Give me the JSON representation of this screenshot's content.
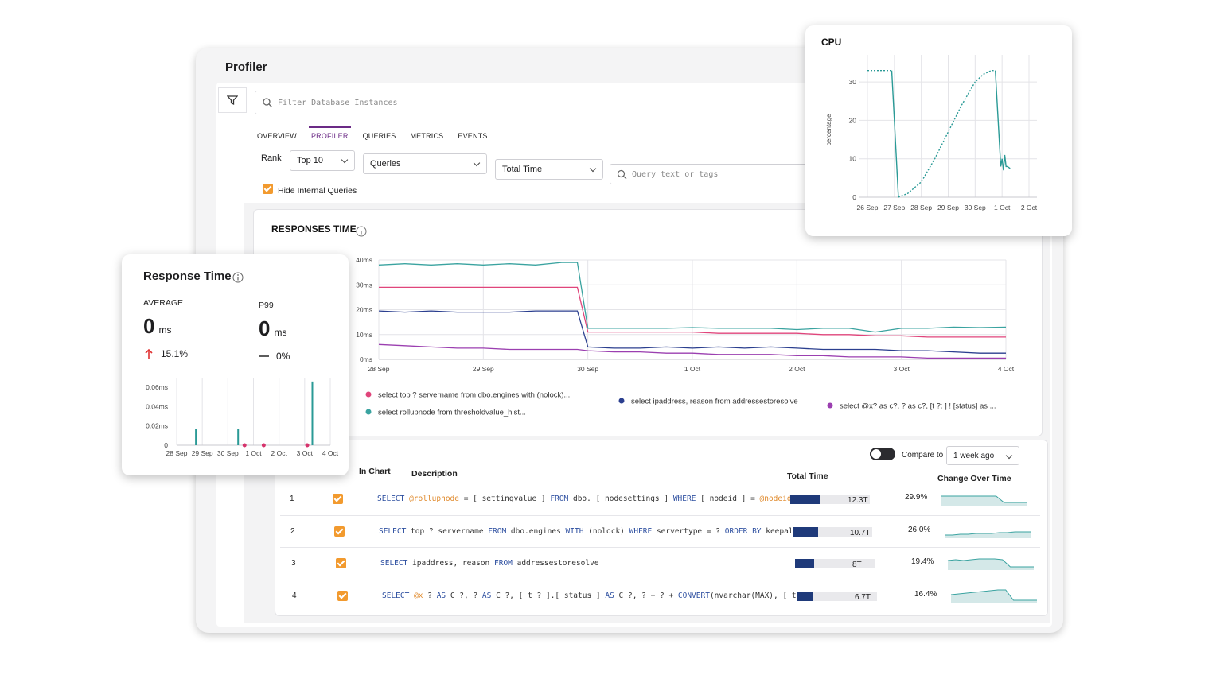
{
  "header": {
    "title": "Profiler",
    "search_placeholder": "Filter Database Instances"
  },
  "tabs": {
    "items": [
      "OVERVIEW",
      "PROFILER",
      "QUERIES",
      "METRICS",
      "EVENTS"
    ],
    "active": 1
  },
  "filters": {
    "rank_label": "Rank",
    "rank": "Top 10",
    "group": "Queries",
    "sort": "Total Time",
    "query_placeholder": "Query text or tags",
    "hide_internal": {
      "label": "Hide Internal Queries",
      "checked": true
    }
  },
  "response_time_card": {
    "title": "Response Time",
    "average": {
      "label": "AVERAGE",
      "value": 0,
      "unit": "ms",
      "change": "15.1%",
      "direction": "up"
    },
    "p99": {
      "label": "P99",
      "value": 0,
      "unit": "ms",
      "change": "0%",
      "direction": "flat"
    }
  },
  "chart_data": [
    {
      "type": "line",
      "title": "RESPONSES TIME",
      "grid": true,
      "x": [
        0,
        0.25,
        0.5,
        0.75,
        1,
        1.25,
        1.5,
        1.75,
        1.9,
        2,
        2.25,
        2.5,
        2.75,
        3,
        3.25,
        3.5,
        3.75,
        4,
        4.25,
        4.5,
        4.75,
        5,
        5.25,
        5.5,
        5.75,
        6
      ],
      "xlim": [
        0,
        6
      ],
      "xticks": [
        {
          "value": 0,
          "label": "28 Sep"
        },
        {
          "value": 1,
          "label": "29 Sep"
        },
        {
          "value": 2,
          "label": "30 Sep"
        },
        {
          "value": 3,
          "label": "1 Oct"
        },
        {
          "value": 4,
          "label": "2 Oct"
        },
        {
          "value": 5,
          "label": "3 Oct"
        },
        {
          "value": 6,
          "label": "4 Oct"
        }
      ],
      "ylim": [
        0,
        40
      ],
      "yticks": [
        {
          "value": 0,
          "label": "0ms"
        },
        {
          "value": 10,
          "label": "10ms"
        },
        {
          "value": 20,
          "label": "20ms"
        },
        {
          "value": 30,
          "label": "30ms"
        },
        {
          "value": 40,
          "label": "40ms"
        }
      ],
      "series": [
        {
          "name": "select top ? servername from dbo.engines with (nolock)...",
          "color": "#e0457b",
          "values": [
            29,
            29,
            29,
            29,
            29,
            29,
            29,
            29,
            29,
            11,
            11,
            11,
            11,
            11,
            10.5,
            10.5,
            10.5,
            10.5,
            10,
            10,
            9.5,
            9.5,
            9,
            9,
            9,
            9
          ]
        },
        {
          "name": "select ipaddress, reason from addressestoresolve",
          "color": "#2b3f8f",
          "values": [
            19.5,
            19,
            19.5,
            19,
            19,
            19,
            19.5,
            19.5,
            19.5,
            5,
            4.5,
            4.5,
            5,
            4.5,
            5,
            4.5,
            5,
            4.5,
            4,
            4,
            4,
            3.5,
            3.5,
            3,
            2.5,
            2.5
          ]
        },
        {
          "name": "select @x? as c?, ? as c?, [t ?: ] ! [status] as ...",
          "color": "#9b3fb0",
          "values": [
            6,
            5.5,
            5,
            4.5,
            4.5,
            4,
            4,
            4,
            4,
            3.5,
            3,
            3,
            2.5,
            2.5,
            2,
            2,
            2,
            1.5,
            1.5,
            1,
            1,
            1,
            0.5,
            0.5,
            0.5,
            0.5
          ]
        },
        {
          "name": "select rollupnode from thresholdvalue_hist...",
          "color": "#3aa3a0",
          "values": [
            38,
            38.5,
            38,
            38.5,
            38,
            38.5,
            38,
            39,
            39,
            12.5,
            12.5,
            12.5,
            12.5,
            12.8,
            12.5,
            12.5,
            12.5,
            12,
            12.5,
            12.5,
            11,
            12.5,
            12.5,
            13,
            12.8,
            13
          ]
        }
      ]
    },
    {
      "type": "line",
      "title": "CPU",
      "y_label": "percentage",
      "grid": true,
      "xlim": [
        0,
        6
      ],
      "xticks": [
        {
          "value": 0,
          "label": "26 Sep"
        },
        {
          "value": 1,
          "label": "27 Sep"
        },
        {
          "value": 2,
          "label": "28 Sep"
        },
        {
          "value": 3,
          "label": "29 Sep"
        },
        {
          "value": 4,
          "label": "30 Sep"
        },
        {
          "value": 5,
          "label": "1 Oct"
        },
        {
          "value": 6,
          "label": "2 Oct"
        }
      ],
      "ylim": [
        0,
        35
      ],
      "yticks": [
        0,
        10,
        20,
        30
      ],
      "series": [
        {
          "color": "#2a9a96",
          "dashed": true,
          "x": [
            0,
            0.9
          ],
          "values": [
            33,
            33
          ]
        },
        {
          "color": "#2a9a96",
          "x": [
            0.9,
            1.15
          ],
          "values": [
            33,
            0
          ]
        },
        {
          "color": "#2a9a96",
          "dashed": true,
          "x": [
            1.15,
            1.5,
            2,
            2.5,
            3,
            3.5,
            4,
            4.3,
            4.6,
            4.75
          ],
          "values": [
            0,
            1,
            4,
            10,
            17,
            24,
            30,
            32,
            33,
            33
          ]
        },
        {
          "color": "#2a9a96",
          "x": [
            4.75,
            4.95,
            5.0,
            5.05,
            5.1,
            5.15,
            5.2,
            5.3
          ],
          "values": [
            33,
            8,
            10,
            7,
            11,
            8,
            8,
            7.5
          ]
        }
      ]
    },
    {
      "type": "bar",
      "grid": true,
      "color": "#2a9a96",
      "x": [
        0.75,
        2.4,
        5.3
      ],
      "values": [
        0.017,
        0.017,
        0.066
      ],
      "markers": {
        "color": "#d6336c",
        "x": [
          2.65,
          3.4,
          5.1
        ],
        "values": [
          0,
          0,
          0
        ]
      },
      "xlim": [
        0,
        6
      ],
      "xticks": [
        {
          "value": 0,
          "label": "28 Sep"
        },
        {
          "value": 1,
          "label": "29 Sep"
        },
        {
          "value": 2,
          "label": "30 Sep"
        },
        {
          "value": 3,
          "label": "1 Oct"
        },
        {
          "value": 4,
          "label": "2 Oct"
        },
        {
          "value": 5,
          "label": "3 Oct"
        },
        {
          "value": 6,
          "label": "4 Oct"
        }
      ],
      "ylim": [
        0,
        0.07
      ],
      "yticks": [
        0,
        {
          "value": 0.02,
          "label": "0.02ms"
        },
        {
          "value": 0.04,
          "label": "0.04ms"
        },
        {
          "value": 0.06,
          "label": "0.06ms"
        }
      ]
    }
  ],
  "table": {
    "compare_label": "Compare to",
    "compare_period": "1 week ago",
    "compare_enabled": true,
    "columns": [
      "In Chart",
      "Description",
      "Total Time",
      "Change Over Time"
    ],
    "rows": [
      {
        "rank": 1,
        "in_chart": true,
        "description": [
          [
            "SELECT",
            "kw"
          ],
          [
            " ",
            "txt"
          ],
          [
            "@rollupnode",
            "var"
          ],
          [
            " = [ settingvalue ] ",
            "txt"
          ],
          [
            "FROM",
            "kw"
          ],
          [
            " dbo. [ nodesettings ] ",
            "txt"
          ],
          [
            "WHERE",
            "kw"
          ],
          [
            " [ nodeid ] = ",
            "txt"
          ],
          [
            "@nodeid A…",
            "var"
          ]
        ],
        "total_time": 12.3,
        "total_time_label": "12.3T",
        "change": "29.9%",
        "trend": [
          6,
          6,
          6,
          6,
          6,
          6,
          6,
          6,
          2,
          2,
          2,
          2
        ]
      },
      {
        "rank": 2,
        "in_chart": true,
        "description": [
          [
            "SELECT",
            "kw"
          ],
          [
            " top ? servername ",
            "txt"
          ],
          [
            "FROM",
            "kw"
          ],
          [
            " dbo.engines ",
            "txt"
          ],
          [
            "WITH",
            "kw"
          ],
          [
            " (nolock) ",
            "txt"
          ],
          [
            "WHERE",
            "kw"
          ],
          [
            " servertype = ? ",
            "txt"
          ],
          [
            "ORDER BY",
            "kw"
          ],
          [
            " keepaliv…",
            "txt"
          ]
        ],
        "total_time": 10.7,
        "total_time_label": "10.7T",
        "change": "26.0%",
        "trend": [
          2,
          2,
          2.5,
          2.5,
          3,
          3,
          3,
          3.5,
          3.5,
          4,
          4,
          4
        ]
      },
      {
        "rank": 3,
        "in_chart": true,
        "description": [
          [
            "SELECT",
            "kw"
          ],
          [
            " ipaddress, reason ",
            "txt"
          ],
          [
            "FROM",
            "kw"
          ],
          [
            " addressestoresolve",
            "txt"
          ]
        ],
        "total_time": 8,
        "total_time_label": "8T",
        "change": "19.4%",
        "trend": [
          6,
          6.5,
          6,
          6.5,
          7,
          7,
          7,
          6.5,
          2,
          2,
          2,
          2
        ]
      },
      {
        "rank": 4,
        "in_chart": true,
        "description": [
          [
            "SELECT",
            "kw"
          ],
          [
            " ",
            "txt"
          ],
          [
            "@x",
            "var"
          ],
          [
            " ? ",
            "txt"
          ],
          [
            "AS",
            "kw"
          ],
          [
            " C ?, ? ",
            "txt"
          ],
          [
            "AS",
            "kw"
          ],
          [
            " C ?, [ t ? ].[ status ] ",
            "txt"
          ],
          [
            "AS",
            "kw"
          ],
          [
            " C ?, ? + ? + ",
            "txt"
          ],
          [
            "CONVERT",
            "kw"
          ],
          [
            "(nvarchar(MAX), [ t ?…",
            "txt"
          ]
        ],
        "total_time": 6.7,
        "total_time_label": "6.7T",
        "change": "16.4%",
        "trend": [
          5,
          5.5,
          6,
          6.5,
          7,
          7.5,
          8,
          8,
          1.5,
          1.5,
          1.5,
          1.5
        ]
      }
    ]
  }
}
